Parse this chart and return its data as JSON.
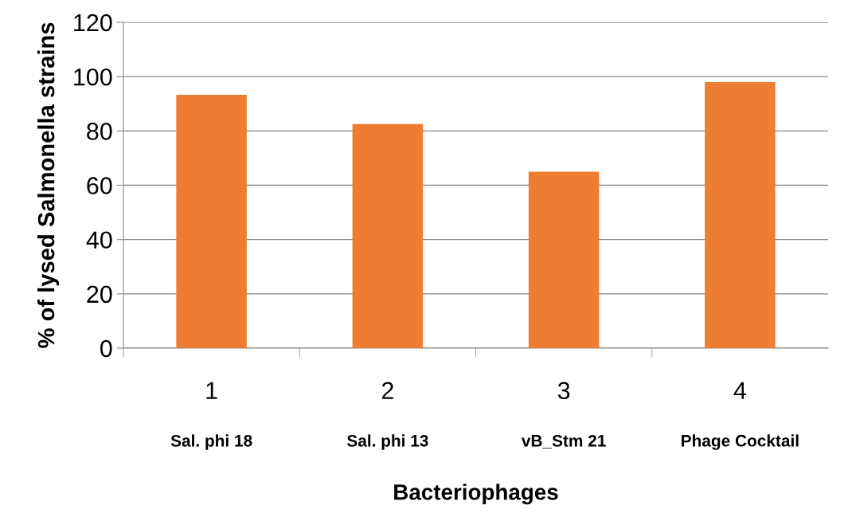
{
  "chart_data": {
    "type": "bar",
    "xlabel": "Bacteriophages",
    "ylabel": "% of lysed Salmonella strains",
    "categories": [
      "1",
      "2",
      "3",
      "4"
    ],
    "values": [
      93.3,
      82.5,
      65,
      98
    ],
    "color": "#ed7d31",
    "ylim": [
      0,
      120
    ],
    "yticks": [
      0,
      20,
      40,
      60,
      80,
      100,
      120
    ],
    "grid": "y",
    "annotations": [
      "Sal. phi 18",
      "Sal. phi 13",
      "vB_Stm 21",
      "Phage Cocktail"
    ]
  }
}
